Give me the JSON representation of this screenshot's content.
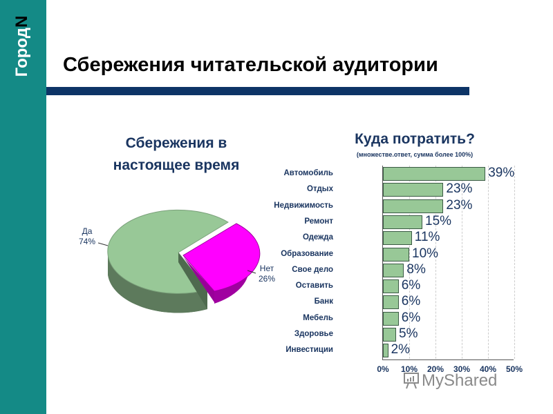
{
  "brand": {
    "text": "Город",
    "letter": "N"
  },
  "slide_title": "Сбережения читательской аудитории",
  "colors": {
    "sidebar": "#148a86",
    "rule": "#0d3466",
    "pie_yes": "#98c897",
    "pie_no": "#ff00ff",
    "bar": "#98c897",
    "text": "#1a3560"
  },
  "pie": {
    "title_line1": "Сбережения в",
    "title_line2": "настоящее время",
    "yes_label": "Да",
    "yes_value": "74%",
    "no_label": "Нет",
    "no_value": "26%"
  },
  "bars": {
    "title": "Куда потратить?",
    "subtitle": "(множестве.ответ, сумма более 100%)",
    "ticks": [
      "0%",
      "10%",
      "20%",
      "30%",
      "40%",
      "50%"
    ]
  },
  "watermark": "MyShared",
  "chart_data": [
    {
      "type": "pie",
      "title": "Сбережения в настоящее время",
      "categories": [
        "Да",
        "Нет"
      ],
      "values": [
        74,
        26
      ],
      "labels": [
        "74%",
        "26%"
      ],
      "exploded": "Нет"
    },
    {
      "type": "bar",
      "orientation": "horizontal",
      "title": "Куда потратить?",
      "subtitle": "(множестве.ответ, сумма более 100%)",
      "categories": [
        "Автомобиль",
        "Отдых",
        "Недвижимость",
        "Ремонт",
        "Одежда",
        "Образование",
        "Свое дело",
        "Оставить",
        "Банк",
        "Мебель",
        "Здоровье",
        "Инвестиции"
      ],
      "values": [
        39,
        23,
        23,
        15,
        11,
        10,
        8,
        6,
        6,
        6,
        5,
        2
      ],
      "value_labels": [
        "39%",
        "23%",
        "23%",
        "15%",
        "11%",
        "10%",
        "8%",
        "6%",
        "6%",
        "6%",
        "5%",
        "2%"
      ],
      "xlabel": "",
      "ylabel": "",
      "xlim": [
        0,
        50
      ],
      "xticks": [
        "0%",
        "10%",
        "20%",
        "30%",
        "40%",
        "50%"
      ],
      "grid": "vertical dashed"
    }
  ]
}
